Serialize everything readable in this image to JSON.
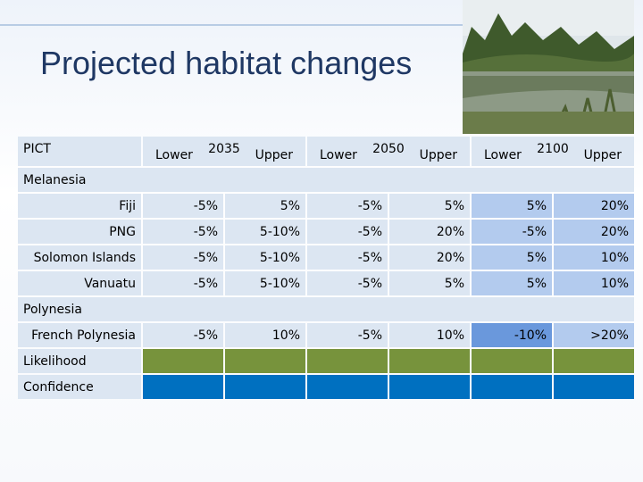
{
  "title": "Projected habitat changes",
  "table": {
    "header": {
      "pict": "PICT",
      "periods": [
        {
          "year": "2035",
          "lower": "Lower",
          "upper": "Upper"
        },
        {
          "year": "2050",
          "lower": "Lower",
          "upper": "Upper"
        },
        {
          "year": "2100",
          "lower": "Lower",
          "upper": "Upper"
        }
      ]
    },
    "groups": [
      {
        "name": "Melanesia",
        "rows": [
          {
            "label": "Fiji",
            "values": [
              "-5%",
              "5%",
              "-5%",
              "5%",
              "5%",
              "20%"
            ]
          },
          {
            "label": "PNG",
            "values": [
              "-5%",
              "5-10%",
              "-5%",
              "20%",
              "-5%",
              "20%"
            ]
          },
          {
            "label": "Solomon Islands",
            "values": [
              "-5%",
              "5-10%",
              "-5%",
              "20%",
              "5%",
              "10%"
            ]
          },
          {
            "label": "Vanuatu",
            "values": [
              "-5%",
              "5-10%",
              "-5%",
              "5%",
              "5%",
              "10%"
            ]
          }
        ]
      },
      {
        "name": "Polynesia",
        "rows": [
          {
            "label": "French Polynesia",
            "values": [
              "-5%",
              "10%",
              "-5%",
              "10%",
              "-10%",
              ">20%"
            ]
          }
        ]
      }
    ],
    "indicators": [
      {
        "label": "Likelihood"
      },
      {
        "label": "Confidence"
      }
    ]
  }
}
